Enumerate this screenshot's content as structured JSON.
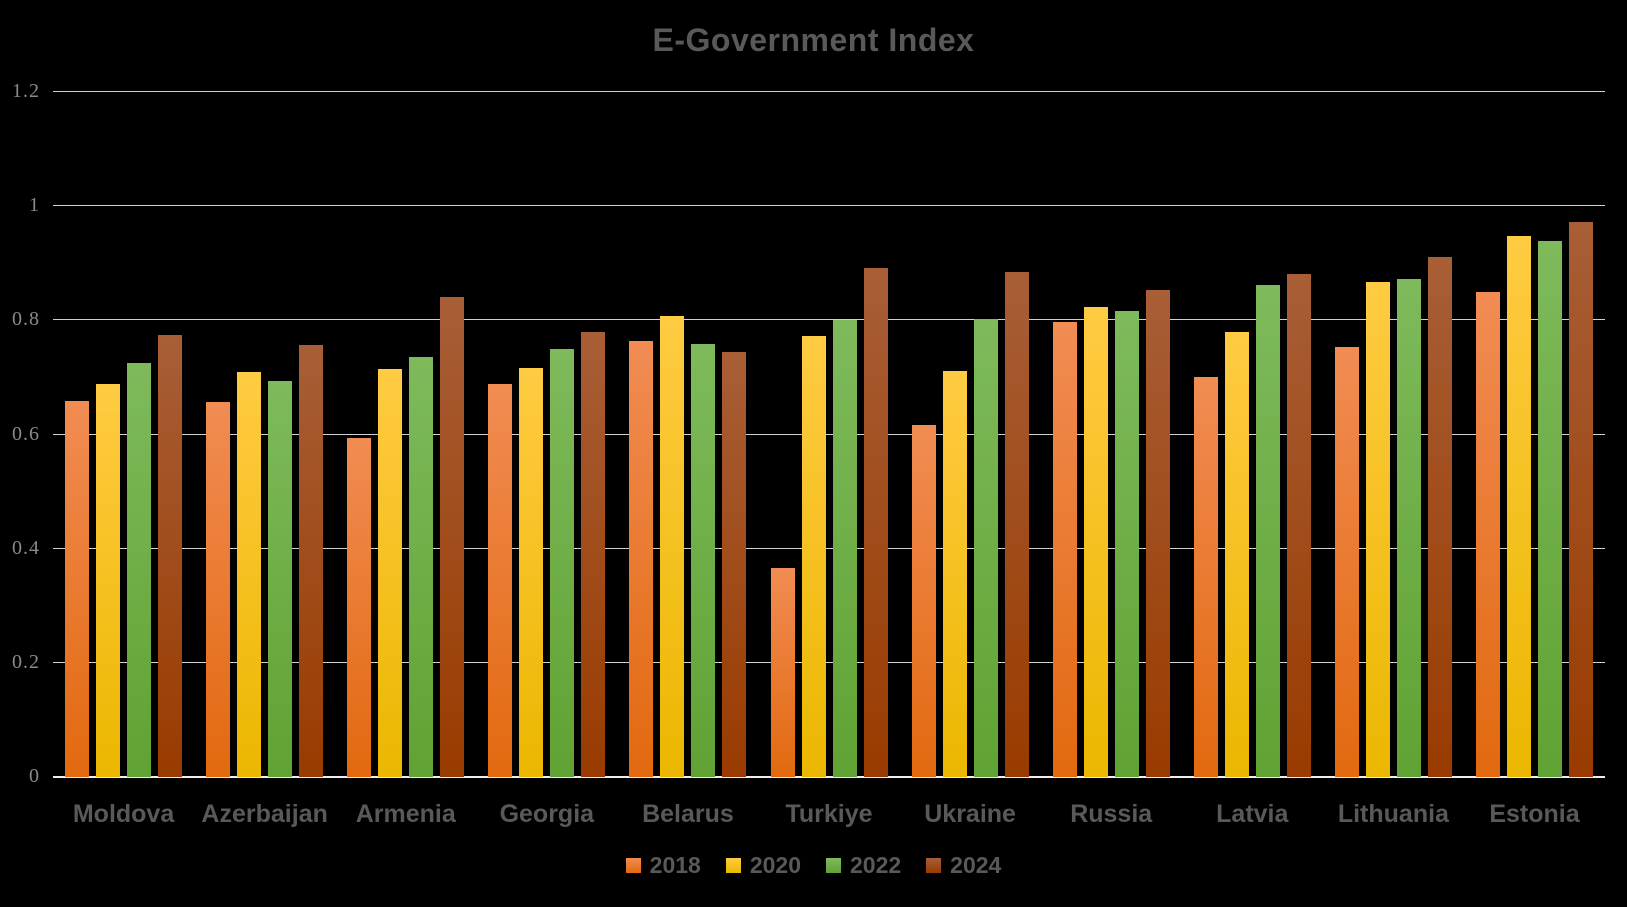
{
  "title": "E-Government Index",
  "colors": {
    "background": "#000000",
    "title_text": "#595959",
    "axis_tick_text": "#8A8A8A",
    "category_label_text": "#595959",
    "legend_label_text": "#595959",
    "gridline": "#D2D2D2",
    "axis_line": "#EDEDED",
    "series": {
      "2018": {
        "top": "#F18C53",
        "bottom": "#E2690F"
      },
      "2020": {
        "top": "#FFCB42",
        "bottom": "#EBB700"
      },
      "2022": {
        "top": "#7EBA5B",
        "bottom": "#60A233"
      },
      "2024": {
        "top": "#A85E36",
        "bottom": "#993B00"
      }
    }
  },
  "chart_data": {
    "type": "bar",
    "title": "E-Government Index",
    "xlabel": "",
    "ylabel": "",
    "ylim": [
      0,
      1.2
    ],
    "yticks": [
      1.2,
      1,
      0.8,
      0.6,
      0.4,
      0.2,
      0
    ],
    "ytick_labels": [
      "1.2",
      "1",
      "0.8",
      "0.6",
      "0.4",
      "0.2",
      "0"
    ],
    "grid": true,
    "legend_position": "bottom",
    "categories": [
      "Moldova",
      "Azerbaijan",
      "Armenia",
      "Georgia",
      "Belarus",
      "Turkiye",
      "Ukraine",
      "Russia",
      "Latvia",
      "Lithuania",
      "Estonia"
    ],
    "series": [
      {
        "name": "2018",
        "values": [
          0.659,
          0.657,
          0.594,
          0.689,
          0.764,
          0.366,
          0.617,
          0.797,
          0.7,
          0.753,
          0.849
        ]
      },
      {
        "name": "2020",
        "values": [
          0.688,
          0.71,
          0.714,
          0.717,
          0.808,
          0.772,
          0.712,
          0.824,
          0.78,
          0.867,
          0.947
        ]
      },
      {
        "name": "2022",
        "values": [
          0.726,
          0.694,
          0.736,
          0.749,
          0.758,
          0.801,
          0.803,
          0.816,
          0.862,
          0.873,
          0.939
        ]
      },
      {
        "name": "2024",
        "values": [
          0.774,
          0.756,
          0.841,
          0.78,
          0.744,
          0.891,
          0.884,
          0.853,
          0.882,
          0.911,
          0.973
        ]
      }
    ]
  }
}
